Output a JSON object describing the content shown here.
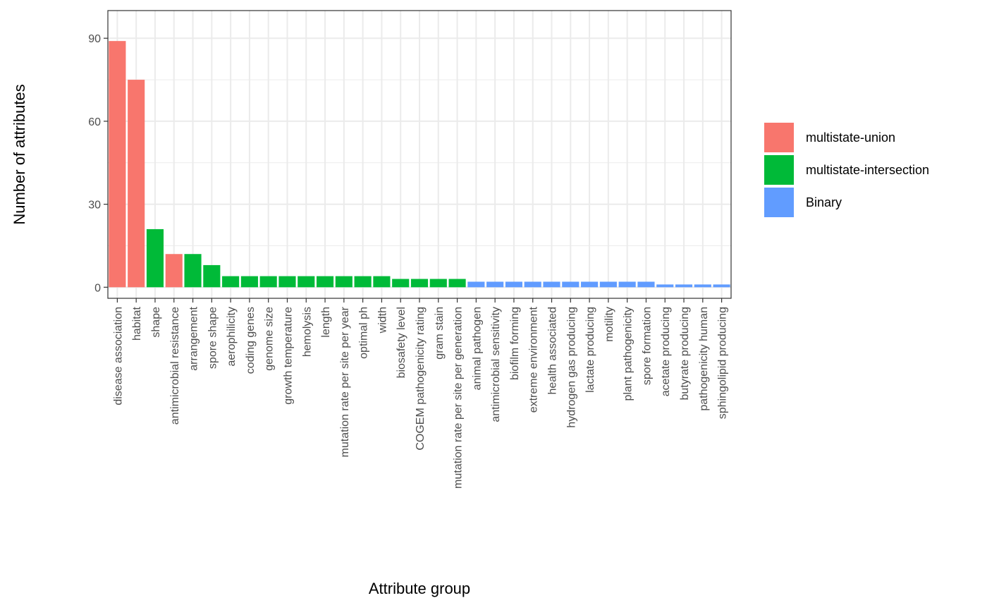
{
  "chart_data": {
    "type": "bar",
    "xlabel": "Attribute group",
    "ylabel": "Number of attributes",
    "ylim": [
      -4,
      100
    ],
    "yticks": [
      0,
      30,
      60,
      90
    ],
    "grid": true,
    "legend_position": "right",
    "legend": [
      {
        "name": "multistate-union",
        "color": "#F8766D"
      },
      {
        "name": "multistate-intersection",
        "color": "#00BA38"
      },
      {
        "name": "Binary",
        "color": "#619CFF"
      }
    ],
    "categories": [
      "disease association",
      "habitat",
      "shape",
      "antimicrobial resistance",
      "arrangement",
      "spore shape",
      "aerophilicity",
      "coding genes",
      "genome size",
      "growth temperature",
      "hemolysis",
      "length",
      "mutation rate per site per year",
      "optimal ph",
      "width",
      "biosafety level",
      "COGEM pathogenicity rating",
      "gram stain",
      "mutation rate per site per generation",
      "animal pathogen",
      "antimicrobial sensitivity",
      "biofilm forming",
      "extreme environment",
      "health associated",
      "hydrogen gas producing",
      "lactate producing",
      "motility",
      "plant pathogenicity",
      "spore formation",
      "acetate producing",
      "butyrate producing",
      "pathogenicity human",
      "sphingolipid producing"
    ],
    "values": [
      89,
      75,
      21,
      12,
      12,
      8,
      4,
      4,
      4,
      4,
      4,
      4,
      4,
      4,
      4,
      3,
      3,
      3,
      3,
      2,
      2,
      2,
      2,
      2,
      2,
      2,
      2,
      2,
      2,
      1,
      1,
      1,
      1
    ],
    "groups": [
      "multistate-union",
      "multistate-union",
      "multistate-intersection",
      "multistate-union",
      "multistate-intersection",
      "multistate-intersection",
      "multistate-intersection",
      "multistate-intersection",
      "multistate-intersection",
      "multistate-intersection",
      "multistate-intersection",
      "multistate-intersection",
      "multistate-intersection",
      "multistate-intersection",
      "multistate-intersection",
      "multistate-intersection",
      "multistate-intersection",
      "multistate-intersection",
      "multistate-intersection",
      "Binary",
      "Binary",
      "Binary",
      "Binary",
      "Binary",
      "Binary",
      "Binary",
      "Binary",
      "Binary",
      "Binary",
      "Binary",
      "Binary",
      "Binary",
      "Binary"
    ]
  }
}
